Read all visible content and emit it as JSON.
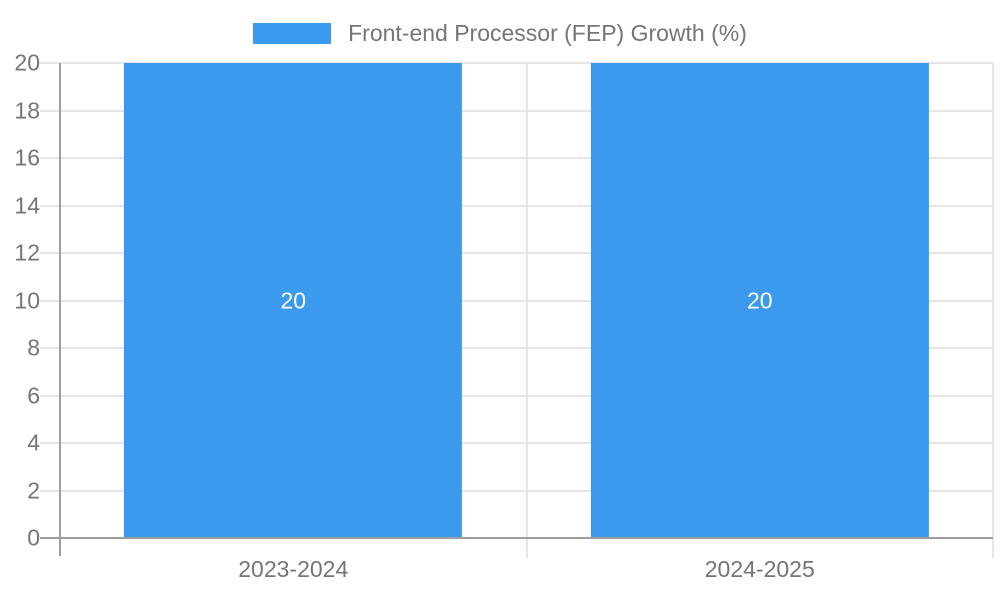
{
  "chart_data": {
    "type": "bar",
    "legend": {
      "position": "top",
      "label": "Front-end Processor (FEP) Growth (%)"
    },
    "categories": [
      "2023-2024",
      "2024-2025"
    ],
    "series": [
      {
        "name": "Front-end Processor (FEP) Growth (%)",
        "color": "#3B99EE",
        "values": [
          20,
          20
        ]
      }
    ],
    "bar_value_labels": [
      "20",
      "20"
    ],
    "ylim": [
      0,
      20
    ],
    "ytick_step": 2,
    "grid": true,
    "layout_hints": {
      "bar_width_fraction": 0.725,
      "value_label_position": "center-of-bar"
    },
    "colors": {
      "bar": "#3B99EE",
      "gridline": "#E6E6E6",
      "axis_line": "#9E9E9E",
      "tick_text": "#757575",
      "bar_label_text": "#FFFFFF",
      "background": "#FFFFFF"
    }
  }
}
